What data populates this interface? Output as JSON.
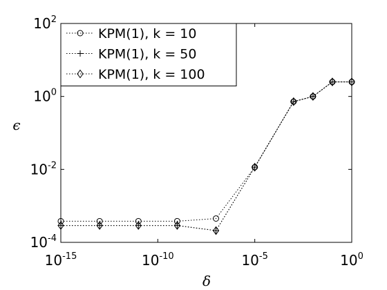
{
  "chart_data": {
    "type": "line",
    "title": "",
    "xlabel": "δ",
    "ylabel": "ϵ",
    "x_scale": "log",
    "y_scale": "log",
    "xlim": [
      1e-15,
      1
    ],
    "ylim": [
      0.0001,
      100
    ],
    "grid": false,
    "legend_position": "top-left",
    "x_ticks": [
      {
        "base": "10",
        "exp": "-15",
        "value": 1e-15
      },
      {
        "base": "10",
        "exp": "-10",
        "value": 1e-10
      },
      {
        "base": "10",
        "exp": "-5",
        "value": 1e-05
      },
      {
        "base": "10",
        "exp": "0",
        "value": 1
      }
    ],
    "y_ticks": [
      {
        "base": "10",
        "exp": "-4",
        "value": 0.0001
      },
      {
        "base": "10",
        "exp": "-2",
        "value": 0.01
      },
      {
        "base": "10",
        "exp": "0",
        "value": 1
      },
      {
        "base": "10",
        "exp": "2",
        "value": 100
      }
    ],
    "series": [
      {
        "name": "KPM(1), k = 10",
        "marker": "circle",
        "points": [
          {
            "x": 1e-15,
            "y": 0.00038
          },
          {
            "x": 1e-13,
            "y": 0.00038
          },
          {
            "x": 1e-11,
            "y": 0.00038
          },
          {
            "x": 1e-09,
            "y": 0.00038
          },
          {
            "x": 1e-07,
            "y": 0.00045
          },
          {
            "x": 1e-05,
            "y": 0.0115
          },
          {
            "x": 0.001,
            "y": 0.72
          },
          {
            "x": 0.01,
            "y": 1.0
          },
          {
            "x": 0.1,
            "y": 2.5
          },
          {
            "x": 1,
            "y": 2.5
          }
        ]
      },
      {
        "name": "KPM(1), k = 50",
        "marker": "plus",
        "points": [
          {
            "x": 1e-15,
            "y": 0.00029
          },
          {
            "x": 1e-13,
            "y": 0.00029
          },
          {
            "x": 1e-11,
            "y": 0.00029
          },
          {
            "x": 1e-09,
            "y": 0.00029
          },
          {
            "x": 1e-07,
            "y": 0.00021
          },
          {
            "x": 1e-05,
            "y": 0.0115
          },
          {
            "x": 0.001,
            "y": 0.72
          },
          {
            "x": 0.01,
            "y": 1.0
          },
          {
            "x": 0.1,
            "y": 2.5
          },
          {
            "x": 1,
            "y": 2.5
          }
        ]
      },
      {
        "name": "KPM(1), k = 100",
        "marker": "diamond",
        "points": [
          {
            "x": 1e-15,
            "y": 0.00029
          },
          {
            "x": 1e-13,
            "y": 0.00029
          },
          {
            "x": 1e-11,
            "y": 0.00029
          },
          {
            "x": 1e-09,
            "y": 0.00029
          },
          {
            "x": 1e-07,
            "y": 0.00021
          },
          {
            "x": 1e-05,
            "y": 0.0115
          },
          {
            "x": 0.001,
            "y": 0.72
          },
          {
            "x": 0.01,
            "y": 1.0
          },
          {
            "x": 0.1,
            "y": 2.5
          },
          {
            "x": 1,
            "y": 2.5
          }
        ]
      }
    ],
    "colors": {
      "line": "#000000",
      "background": "#ffffff"
    }
  }
}
